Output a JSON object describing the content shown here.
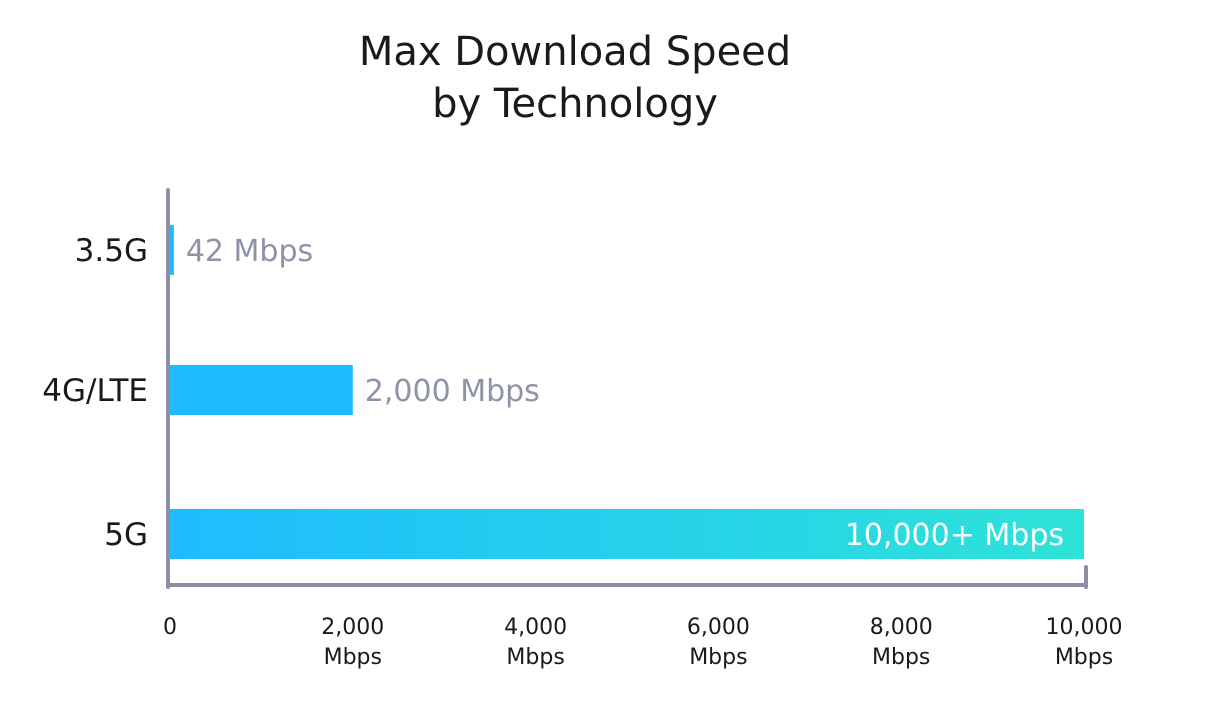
{
  "chart_data": {
    "type": "bar",
    "orientation": "horizontal",
    "title_lines": [
      "Max Download Speed",
      "by Technology"
    ],
    "categories": [
      "3.5G",
      "4G/LTE",
      "5G"
    ],
    "values": [
      42,
      2000,
      10000
    ],
    "value_labels": [
      "42 Mbps",
      "2,000 Mbps",
      "10,000+ Mbps"
    ],
    "xlim": [
      0,
      10000
    ],
    "x_ticks": [
      0,
      2000,
      4000,
      6000,
      8000,
      10000
    ],
    "x_tick_labels": [
      "0",
      "2,000",
      "4,000",
      "6,000",
      "8,000",
      "10,000"
    ],
    "x_tick_unit": "Mbps",
    "grid": false,
    "legend": "none",
    "colors": {
      "bar": "#1ebcff",
      "bar_gradient_end": "#2ee3d8",
      "axis": "#8c8fa3",
      "value_label_outside": "#8f93a8",
      "value_label_inside": "#ffffff",
      "text": "#1a1a1a"
    }
  }
}
